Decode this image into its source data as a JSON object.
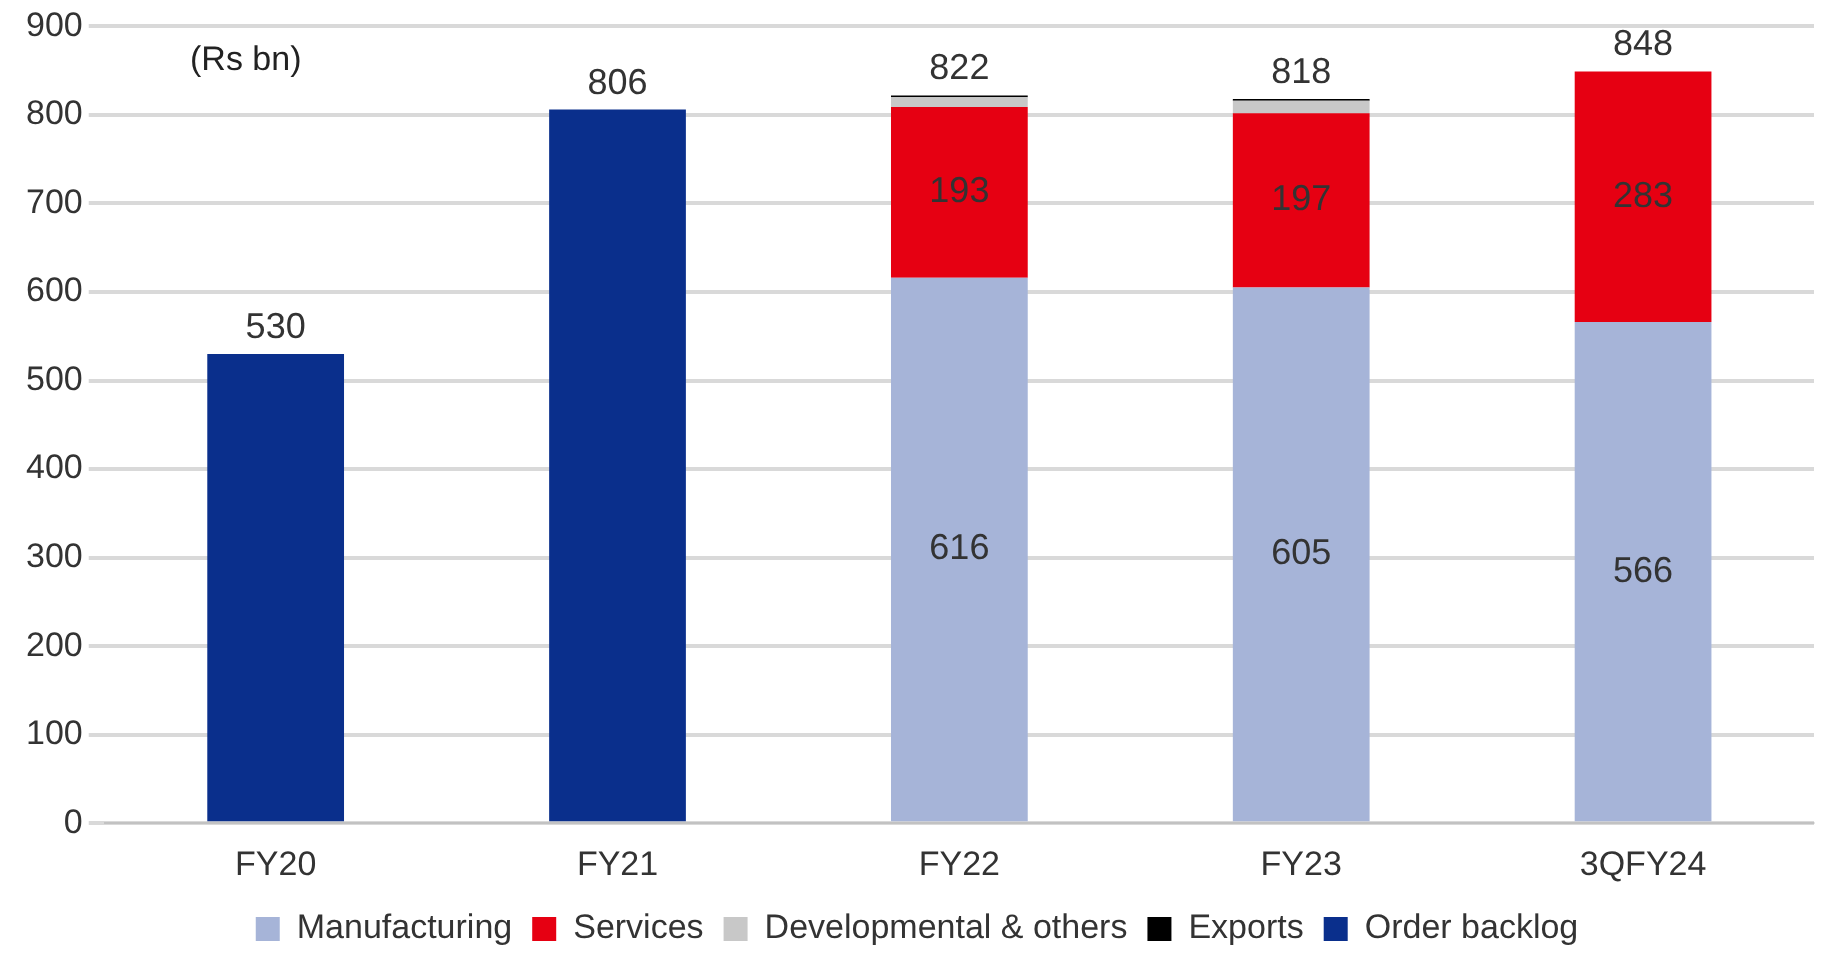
{
  "chart_data": {
    "type": "bar",
    "stacked": true,
    "categories": [
      "FY20",
      "FY21",
      "FY22",
      "FY23",
      "3QFY24"
    ],
    "series": [
      {
        "name": "Manufacturing",
        "color": "#a6b4d8",
        "values": [
          null,
          null,
          616,
          605,
          566
        ],
        "value_labels": [
          null,
          null,
          "616",
          "605",
          "566"
        ]
      },
      {
        "name": "Services",
        "color": "#e60012",
        "values": [
          null,
          null,
          193,
          197,
          283
        ],
        "value_labels": [
          null,
          null,
          "193",
          "197",
          "283"
        ]
      },
      {
        "name": "Developmental & others",
        "color": "#c8c8c8",
        "values": [
          null,
          null,
          11,
          14,
          null
        ]
      },
      {
        "name": "Exports",
        "color": "#000000",
        "values": [
          null,
          null,
          2,
          2,
          null
        ]
      },
      {
        "name": "Order backlog",
        "color": "#0a2f8c",
        "values": [
          530,
          806,
          null,
          null,
          null
        ]
      }
    ],
    "totals": [
      "530",
      "806",
      "822",
      "818",
      "848"
    ],
    "ylim": [
      0,
      900
    ],
    "yticks": [
      0,
      100,
      200,
      300,
      400,
      500,
      600,
      700,
      800,
      900
    ],
    "grid": "y",
    "legend": "bottom",
    "annotations": [
      "(Rs bn)"
    ]
  }
}
